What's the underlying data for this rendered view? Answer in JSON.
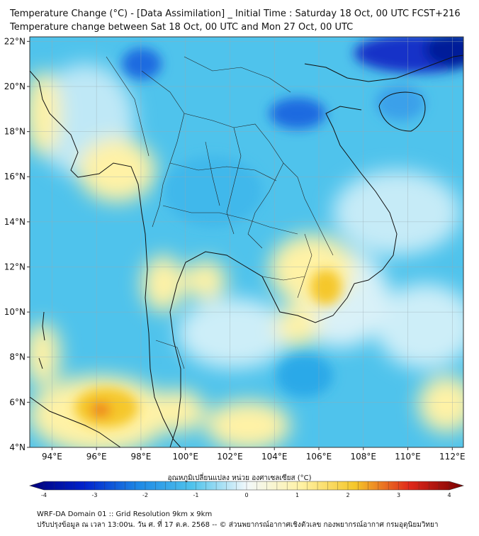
{
  "header": {
    "title_line1": "Temperature Change (°C) - [Data Assimilation] _ Initial Time : Saturday 18 Oct, 00 UTC FCST+216",
    "title_line2": "Temperature change between Sat 18 Oct, 00 UTC and Mon 27 Oct, 00 UTC"
  },
  "map": {
    "lon_range": [
      93,
      112.5
    ],
    "lat_range": [
      4,
      22.2
    ],
    "lon_ticks": [
      "94°E",
      "96°E",
      "98°E",
      "100°E",
      "102°E",
      "104°E",
      "106°E",
      "108°E",
      "110°E",
      "112°E"
    ],
    "lat_ticks": [
      "4°N",
      "6°N",
      "8°N",
      "10°N",
      "12°N",
      "14°N",
      "16°N",
      "18°N",
      "20°N",
      "22°N"
    ],
    "grid": true,
    "background_color": "#4fc3ec"
  },
  "colorbar": {
    "title": "อุณหภูมิเปลี่ยนแปลง หน่วย องศาเซลเซียส (°C)",
    "major_ticks": [
      "-4",
      "-3",
      "-2",
      "-1",
      "0",
      "1",
      "2",
      "3",
      "4"
    ],
    "range": [
      -4,
      4
    ],
    "colors": {
      "neg4": "#00007a",
      "neg3": "#0022cc",
      "neg2": "#1e88e5",
      "neg1": "#4fc3ec",
      "zero": "#f2f8fb",
      "pos1": "#fff2a6",
      "pos2": "#f5c72a",
      "pos3": "#e0281b",
      "pos4": "#7a0000"
    }
  },
  "footer": {
    "line1": "WRF-DA Domain 01 :: Grid Resolution 9km x 9km",
    "line2": "ปรับปรุงข้อมูล ณ เวลา 13:00น. วัน ศ. ที่ 17 ต.ค. 2568 -- © ส่วนพยากรณ์อากาศเชิงตัวเลข กองพยากรณ์อากาศ กรมอุตุนิยมวิทยา"
  }
}
